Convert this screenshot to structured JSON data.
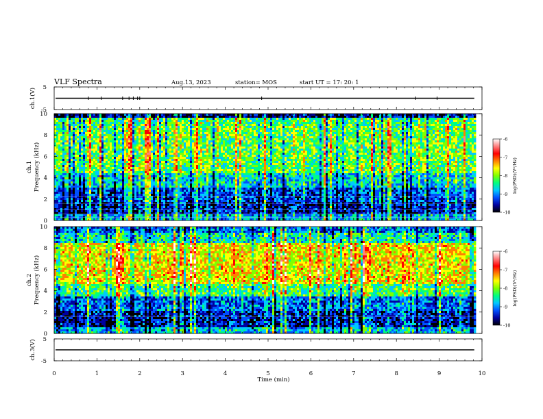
{
  "header": {
    "title": "VLF Spectra",
    "date": "Aug.13, 2023",
    "station": "station= MOS",
    "start": "start  UT  =    17: 20: 1"
  },
  "chart_data": [
    {
      "id": "ch1-waveform",
      "type": "line",
      "ylabel": "ch.1(V)",
      "ylim": [
        -5,
        5
      ],
      "yticks": [
        5,
        -5
      ],
      "xlim": [
        0,
        10
      ],
      "baseline": 0,
      "spikes_t": [
        0.8,
        1.1,
        1.6,
        1.75,
        1.85,
        1.95,
        2.0,
        4.85,
        8.45,
        8.95
      ]
    },
    {
      "id": "ch1-spectrogram",
      "type": "heatmap",
      "ylabel_lines": [
        "ch.1",
        "Frequency (kHz)"
      ],
      "ylim": [
        0,
        10
      ],
      "yticks": [
        0,
        2,
        4,
        6,
        8,
        10
      ],
      "xlim": [
        0,
        10
      ],
      "data_end_t": 9.82,
      "horizontal_lines_khz": [
        0.3,
        0.6,
        1.0,
        1.6,
        2.2
      ],
      "colorbar": {
        "label": "log(PSD)(V²/Hz)",
        "ticks": [
          -6,
          -7,
          -8,
          -9,
          -10
        ],
        "range": [
          -10,
          -6
        ]
      }
    },
    {
      "id": "ch2-spectrogram",
      "type": "heatmap",
      "ylabel_lines": [
        "ch.2",
        "Frequency (kHz)"
      ],
      "ylim": [
        0,
        10
      ],
      "yticks": [
        0,
        2,
        4,
        6,
        8,
        10
      ],
      "xlim": [
        0,
        10
      ],
      "data_end_t": 9.82,
      "horizontal_lines_khz": [
        1.6
      ],
      "colorbar": {
        "label": "log(PSD)(V²/Hz)",
        "ticks": [
          -6,
          -7,
          -8,
          -9,
          -10
        ],
        "range": [
          -10,
          -6
        ]
      }
    },
    {
      "id": "ch3-waveform",
      "type": "line",
      "ylabel": "ch.3(V)",
      "ylim": [
        -5,
        5
      ],
      "yticks": [
        5,
        -5
      ],
      "xlim": [
        0,
        10
      ],
      "baseline": 0,
      "spikes_t": []
    }
  ],
  "xaxis": {
    "label": "Time  (min)",
    "ticks": [
      0,
      1,
      2,
      3,
      4,
      5,
      6,
      7,
      8,
      9,
      10
    ]
  },
  "colormap": [
    "#000000",
    "#0000a0",
    "#0050ff",
    "#00c8ff",
    "#00ff80",
    "#80ff00",
    "#ffff00",
    "#ff8000",
    "#ff0000",
    "#ff8080",
    "#ffffff"
  ]
}
